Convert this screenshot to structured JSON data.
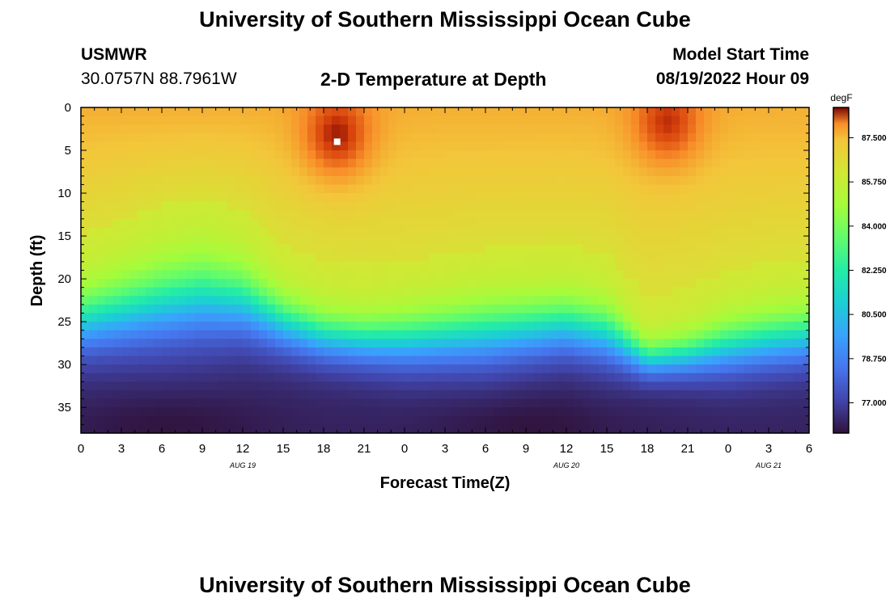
{
  "header": {
    "title": "University of Southern Mississippi Ocean Cube",
    "station": "USMWR",
    "coords": "30.0757N  88.7961W",
    "subtitle": "2-D Temperature at Depth",
    "model_label": "Model Start Time",
    "model_time": "08/19/2022 Hour 09"
  },
  "footer": {
    "title": "University of Southern Mississippi Ocean Cube"
  },
  "chart_data": {
    "type": "heatmap",
    "title": "2-D Temperature at Depth",
    "xlabel": "Forecast Time(Z)",
    "ylabel": "Depth (ft)",
    "x_range_hours": [
      0,
      54
    ],
    "y_range_ft": [
      0,
      38
    ],
    "x_tick_labels": [
      "0",
      "3",
      "6",
      "9",
      "12",
      "15",
      "18",
      "21",
      "0",
      "3",
      "6",
      "9",
      "12",
      "15",
      "18",
      "21",
      "0",
      "3",
      "6"
    ],
    "y_tick_labels": [
      "0",
      "5",
      "10",
      "15",
      "20",
      "25",
      "30",
      "35"
    ],
    "y_tick_values": [
      0,
      5,
      10,
      15,
      20,
      25,
      30,
      35
    ],
    "date_labels": [
      {
        "label": "AUG 19",
        "hour": 12
      },
      {
        "label": "AUG 20",
        "hour": 36
      },
      {
        "label": "AUG 21",
        "hour": 51
      }
    ],
    "colorbar": {
      "unit": "degF",
      "min": 75.8,
      "max": 88.7,
      "tick_values": [
        87.5,
        85.75,
        84.0,
        82.25,
        80.5,
        78.75,
        77.0
      ],
      "tick_labels": [
        "87.500",
        "85.750",
        "84.000",
        "82.250",
        "80.500",
        "78.750",
        "77.000"
      ]
    },
    "surface_temp_degF": 87.2,
    "bottom_temp_degF": 76.2,
    "warm_layer_depth_ft": [
      {
        "hour": 0,
        "depth": 19
      },
      {
        "hour": 6,
        "depth": 15.5
      },
      {
        "hour": 9,
        "depth": 14.5
      },
      {
        "hour": 12,
        "depth": 16
      },
      {
        "hour": 15,
        "depth": 20
      },
      {
        "hour": 18,
        "depth": 22
      },
      {
        "hour": 21,
        "depth": 22.5
      },
      {
        "hour": 24,
        "depth": 22
      },
      {
        "hour": 30,
        "depth": 20.5
      },
      {
        "hour": 36,
        "depth": 20
      },
      {
        "hour": 39,
        "depth": 21
      },
      {
        "hour": 42,
        "depth": 26
      },
      {
        "hour": 45,
        "depth": 25
      },
      {
        "hour": 48,
        "depth": 23
      },
      {
        "hour": 51,
        "depth": 22
      },
      {
        "hour": 54,
        "depth": 21.5
      }
    ],
    "cold_layer_depth_ft": [
      {
        "hour": 0,
        "depth": 31
      },
      {
        "hour": 6,
        "depth": 30.5
      },
      {
        "hour": 12,
        "depth": 29.5
      },
      {
        "hour": 18,
        "depth": 31.5
      },
      {
        "hour": 24,
        "depth": 32.5
      },
      {
        "hour": 30,
        "depth": 32.5
      },
      {
        "hour": 36,
        "depth": 31
      },
      {
        "hour": 42,
        "depth": 33
      },
      {
        "hour": 48,
        "depth": 33
      },
      {
        "hour": 54,
        "depth": 32
      }
    ],
    "hot_spots": [
      {
        "hour": 19,
        "depth": 3.5,
        "temp_degF": 88.7
      },
      {
        "hour": 43.5,
        "depth": 2,
        "temp_degF": 88.5
      }
    ],
    "cold_spots": [
      {
        "hour": 6.5,
        "depth": 37,
        "temp_degF": 75.8
      },
      {
        "hour": 33,
        "depth": 37,
        "temp_degF": 75.8
      }
    ],
    "marker": {
      "hour": 19,
      "depth": 4
    }
  }
}
